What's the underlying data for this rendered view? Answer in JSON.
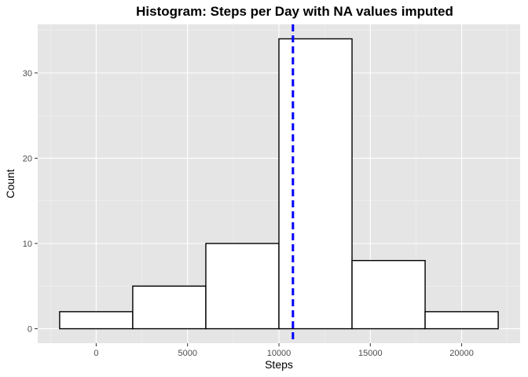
{
  "chart_data": {
    "type": "bar",
    "title": "Histogram: Steps per Day with NA values imputed",
    "xlabel": "Steps",
    "ylabel": "Count",
    "bins": [
      {
        "x0": -2000,
        "x1": 2000,
        "count": 2
      },
      {
        "x0": 2000,
        "x1": 6000,
        "count": 5
      },
      {
        "x0": 6000,
        "x1": 10000,
        "count": 10
      },
      {
        "x0": 10000,
        "x1": 14000,
        "count": 34
      },
      {
        "x0": 14000,
        "x1": 18000,
        "count": 8
      },
      {
        "x0": 18000,
        "x1": 22000,
        "count": 2
      }
    ],
    "mean_line": {
      "x": 10766,
      "color": "#0000ff",
      "style": "dashed"
    },
    "xlim": [
      -3200,
      23200
    ],
    "ylim": [
      -1.7,
      35.7
    ],
    "x_ticks": [
      0,
      5000,
      10000,
      15000,
      20000
    ],
    "x_tick_labels": [
      "0",
      "5000",
      "10000",
      "15000",
      "20000"
    ],
    "y_ticks": [
      0,
      10,
      20,
      30
    ],
    "y_tick_labels": [
      "0",
      "10",
      "20",
      "30"
    ],
    "grid": true,
    "colors": {
      "panel_background": "#e5e5e5",
      "grid_major": "#ffffff",
      "bar_fill": "#ffffff",
      "bar_outline": "#000000"
    }
  }
}
